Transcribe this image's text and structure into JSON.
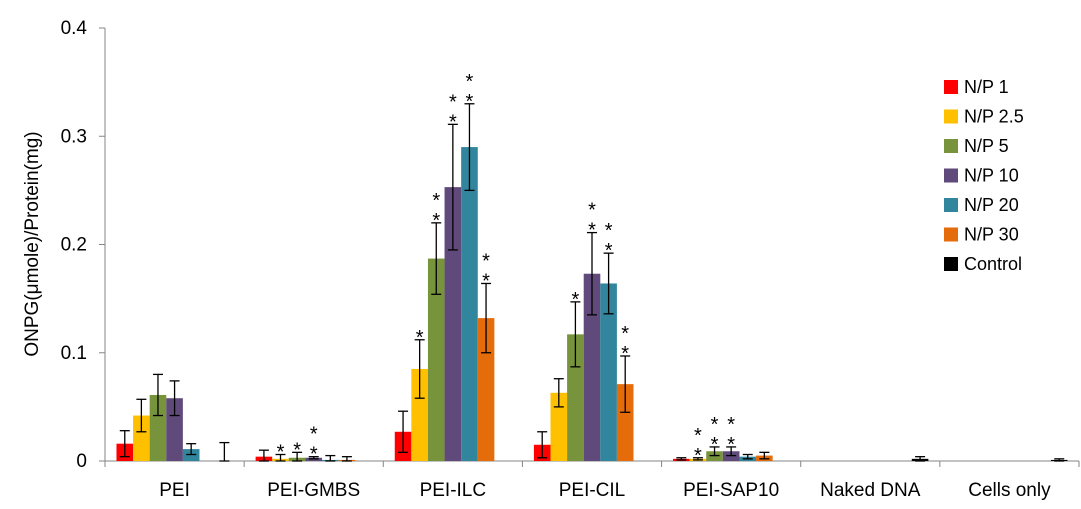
{
  "chart_data": {
    "type": "bar",
    "title": "",
    "xlabel": "",
    "ylabel": "ONPG(μmole)/Protein(mg)",
    "ylim": [
      0,
      0.4
    ],
    "yticks": [
      "0",
      "0.1",
      "0.2",
      "0.3",
      "0.4"
    ],
    "grid": false,
    "legend_position": "right",
    "categories": [
      "PEI",
      "PEI-GMBS",
      "PEI-ILC",
      "PEI-CIL",
      "PEI-SAP10",
      "Naked DNA",
      "Cells only"
    ],
    "series": [
      {
        "name": "N/P 1",
        "color": "#ff0000",
        "values": [
          0.016,
          0.004,
          0.027,
          0.015,
          0.002,
          null,
          null
        ],
        "errors": [
          0.012,
          0.006,
          0.019,
          0.012,
          0.001,
          null,
          null
        ],
        "significance": [
          "",
          "",
          "",
          "",
          "",
          "",
          ""
        ]
      },
      {
        "name": "N/P 2.5",
        "color": "#ffc000",
        "values": [
          0.042,
          0.002,
          0.085,
          0.063,
          0.002,
          null,
          null
        ],
        "errors": [
          0.015,
          0.004,
          0.027,
          0.013,
          0.001,
          null,
          null
        ],
        "significance": [
          "",
          "*",
          "*",
          "",
          "*\n*",
          "",
          ""
        ]
      },
      {
        "name": "N/P 5",
        "color": "#77933c",
        "values": [
          0.061,
          0.003,
          0.187,
          0.117,
          0.009,
          null,
          null
        ],
        "errors": [
          0.019,
          0.005,
          0.033,
          0.03,
          0.004,
          null,
          null
        ],
        "significance": [
          "",
          "*",
          "*\n*",
          "*",
          "*\n*",
          "",
          ""
        ]
      },
      {
        "name": "N/P 10",
        "color": "#604a7b",
        "values": [
          0.058,
          0.003,
          0.253,
          0.173,
          0.009,
          null,
          null
        ],
        "errors": [
          0.016,
          0.001,
          0.058,
          0.038,
          0.004,
          null,
          null
        ],
        "significance": [
          "",
          "*\n*",
          "*\n*",
          "*\n*",
          "*\n*",
          "",
          ""
        ]
      },
      {
        "name": "N/P 20",
        "color": "#31859c",
        "values": [
          0.011,
          0.001,
          0.29,
          0.164,
          0.004,
          null,
          null
        ],
        "errors": [
          0.005,
          0.004,
          0.04,
          0.028,
          0.002,
          null,
          null
        ],
        "significance": [
          "",
          "",
          "*\n*",
          "*\n*",
          "",
          "",
          ""
        ]
      },
      {
        "name": "N/P 30",
        "color": "#e46c0a",
        "values": [
          0.0,
          0.001,
          0.132,
          0.071,
          0.005,
          null,
          null
        ],
        "errors": [
          0.0,
          0.003,
          0.032,
          0.026,
          0.003,
          null,
          null
        ],
        "significance": [
          "",
          "",
          "*\n*",
          "*\n*",
          "",
          "",
          ""
        ]
      },
      {
        "name": "Control",
        "color": "#000000",
        "values": [
          0.0,
          null,
          null,
          null,
          null,
          0.002,
          0.001
        ],
        "errors": [
          0.017,
          null,
          null,
          null,
          null,
          0.002,
          0.001
        ],
        "significance": [
          "",
          "",
          "",
          "",
          "",
          "",
          ""
        ]
      }
    ]
  }
}
